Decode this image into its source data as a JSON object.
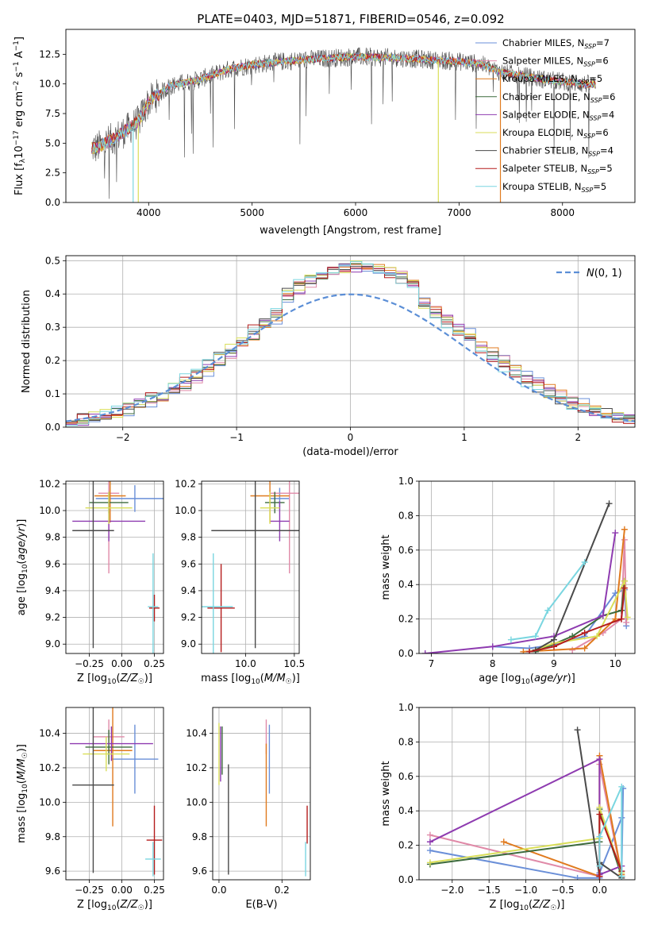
{
  "title": "PLATE=0403, MJD=51871, FIBERID=0546, z=0.092",
  "colors": {
    "chabrier_miles": "#6a8fd8",
    "salpeter_miles": "#e08aa8",
    "kroupa_miles": "#e07a1e",
    "chabrier_elodie": "#3d6b3d",
    "salpeter_elodie": "#8e3bb0",
    "kroupa_elodie": "#d9de58",
    "chabrier_stelib": "#4a4a4a",
    "salpeter_stelib": "#b51c1c",
    "kroupa_stelib": "#7ad6e0",
    "normal_curve": "#5b8ed6",
    "grid": "#b0b0b0"
  },
  "chart_data": [
    {
      "id": "spectrum",
      "type": "line",
      "title": "PLATE=0403, MJD=51871, FIBERID=0546, z=0.092",
      "xlabel": "wavelength [Angstrom, rest frame]",
      "ylabel": "Flux [f_λ 10^-17 erg cm^-2 s^-1 A^-1]",
      "xlim": [
        3200,
        8700
      ],
      "ylim": [
        0,
        14.6
      ],
      "xticks": [
        4000,
        5000,
        6000,
        7000,
        8000
      ],
      "yticks": [
        0.0,
        2.5,
        5.0,
        7.5,
        10.0,
        12.5
      ],
      "grid": false,
      "legend_position": "right",
      "legend": [
        {
          "label": "Chabrier MILES, N_SSP=7",
          "color": "#6a8fd8"
        },
        {
          "label": "Salpeter MILES, N_SSP=6",
          "color": "#e08aa8"
        },
        {
          "label": "Kroupa MILES, N_SSP=5",
          "color": "#e07a1e"
        },
        {
          "label": "Chabrier ELODIE, N_SSP=6",
          "color": "#3d6b3d"
        },
        {
          "label": "Salpeter ELODIE, N_SSP=4",
          "color": "#8e3bb0"
        },
        {
          "label": "Kroupa ELODIE, N_SSP=6",
          "color": "#d9de58"
        },
        {
          "label": "Chabrier STELIB, N_SSP=4",
          "color": "#4a4a4a"
        },
        {
          "label": "Salpeter STELIB, N_SSP=5",
          "color": "#b51c1c"
        },
        {
          "label": "Kroupa STELIB, N_SSP=5",
          "color": "#7ad6e0"
        }
      ],
      "continuum": {
        "wavelength": [
          3500,
          3700,
          3900,
          4000,
          4200,
          4500,
          4800,
          5000,
          5300,
          5600,
          6000,
          6400,
          6800,
          7000,
          7200,
          7400,
          7800,
          8200,
          8700
        ],
        "flux": [
          4.6,
          5.6,
          6.8,
          8.5,
          9.8,
          10.4,
          11.3,
          11.6,
          11.9,
          12.1,
          12.3,
          12.2,
          12.0,
          11.9,
          11.7,
          11.0,
          10.4,
          10.0,
          9.8
        ]
      },
      "spike_wavelengths": [
        3850,
        3900,
        6800,
        7400
      ]
    },
    {
      "id": "residuals",
      "type": "line",
      "xlabel": "(data-model)/error",
      "ylabel": "Normed distribution",
      "xlim": [
        -2.5,
        2.5
      ],
      "ylim": [
        0,
        0.515
      ],
      "xticks": [
        -2,
        -1,
        0,
        1,
        2
      ],
      "yticks": [
        0.0,
        0.1,
        0.2,
        0.3,
        0.4,
        0.5
      ],
      "grid": true,
      "legend_position": "top-right",
      "legend": [
        {
          "label": "N(0,1)",
          "color": "#5b8ed6",
          "style": "dashed"
        }
      ],
      "bin_width": 0.1
    },
    {
      "id": "age-vs-Z",
      "type": "scatter",
      "xlabel": "Z [log10(Z/Z☉)]",
      "ylabel": "age [log10(age/yr)]",
      "xlim": [
        -0.43,
        0.32
      ],
      "ylim": [
        8.93,
        10.22
      ],
      "xticks": [
        -0.25,
        0.0,
        0.25
      ],
      "xticklabels": [
        "−0.25",
        "0.00",
        "0.25"
      ],
      "yticks": [
        9.0,
        9.2,
        9.4,
        9.6,
        9.8,
        10.0,
        10.2
      ],
      "grid": true,
      "points": [
        {
          "x": 0.1,
          "y": 10.09,
          "xerr": 0.3,
          "yerr": 0.1,
          "color": "#6a8fd8"
        },
        {
          "x": -0.1,
          "y": 10.13,
          "xerr": 0.08,
          "yerr": 0.6,
          "color": "#e08aa8"
        },
        {
          "x": -0.09,
          "y": 10.11,
          "xerr": 0.12,
          "yerr": 0.2,
          "color": "#e07a1e"
        },
        {
          "x": -0.1,
          "y": 10.06,
          "xerr": 0.15,
          "yerr": 0.08,
          "color": "#3d6b3d"
        },
        {
          "x": -0.1,
          "y": 9.92,
          "xerr": 0.28,
          "yerr": 0.15,
          "color": "#8e3bb0"
        },
        {
          "x": -0.1,
          "y": 10.02,
          "xerr": 0.18,
          "yerr": 0.12,
          "color": "#d9de58"
        },
        {
          "x": -0.22,
          "y": 9.85,
          "xerr": 0.16,
          "yerr": 0.88,
          "color": "#4a4a4a"
        },
        {
          "x": 0.25,
          "y": 9.27,
          "xerr": 0.04,
          "yerr": 0.1,
          "color": "#b51c1c"
        },
        {
          "x": 0.24,
          "y": 9.28,
          "xerr": 0.04,
          "yerr": 0.4,
          "color": "#7ad6e0"
        }
      ]
    },
    {
      "id": "age-vs-mass",
      "type": "scatter",
      "xlabel": "mass [log10(M/M☉)]",
      "ylabel": "",
      "xlim": [
        9.55,
        10.55
      ],
      "ylim": [
        8.93,
        10.22
      ],
      "xticks": [
        10.0,
        10.5
      ],
      "yticks": [
        9.0,
        9.2,
        9.4,
        9.6,
        9.8,
        10.0,
        10.2
      ],
      "grid": true,
      "points": [
        {
          "x": 10.35,
          "y": 10.09,
          "xerr": 0.1,
          "yerr": 0.08,
          "color": "#6a8fd8"
        },
        {
          "x": 10.45,
          "y": 10.13,
          "xerr": 0.2,
          "yerr": 0.6,
          "color": "#e08aa8"
        },
        {
          "x": 10.25,
          "y": 10.11,
          "xerr": 0.2,
          "yerr": 0.2,
          "color": "#e07a1e"
        },
        {
          "x": 10.3,
          "y": 10.06,
          "xerr": 0.1,
          "yerr": 0.08,
          "color": "#3d6b3d"
        },
        {
          "x": 10.35,
          "y": 9.92,
          "xerr": 0.1,
          "yerr": 0.15,
          "color": "#8e3bb0"
        },
        {
          "x": 10.25,
          "y": 10.02,
          "xerr": 0.1,
          "yerr": 0.12,
          "color": "#d9de58"
        },
        {
          "x": 10.1,
          "y": 9.85,
          "xerr": 0.45,
          "yerr": 0.88,
          "color": "#4a4a4a"
        },
        {
          "x": 9.75,
          "y": 9.27,
          "xerr": 0.14,
          "yerr": 0.33,
          "color": "#b51c1c"
        },
        {
          "x": 9.67,
          "y": 9.28,
          "xerr": 0.2,
          "yerr": 0.4,
          "color": "#7ad6e0"
        }
      ]
    },
    {
      "id": "weight-vs-age",
      "type": "line",
      "xlabel": "age [log10(age/yr)]",
      "ylabel": "mass weight",
      "xlim": [
        6.8,
        10.32
      ],
      "ylim": [
        0,
        1.0
      ],
      "xticks": [
        7,
        8,
        9,
        10
      ],
      "yticks": [
        0.0,
        0.2,
        0.4,
        0.6,
        0.8,
        1.0
      ],
      "grid": true,
      "series": [
        {
          "color": "#6a8fd8",
          "x": [
            8.0,
            8.6,
            9.0,
            9.5,
            10.0,
            10.15,
            10.18
          ],
          "y": [
            0.04,
            0.03,
            0.05,
            0.1,
            0.35,
            0.37,
            0.16
          ]
        },
        {
          "color": "#e08aa8",
          "x": [
            9.3,
            9.8,
            10.1,
            10.15,
            10.18
          ],
          "y": [
            0.02,
            0.12,
            0.2,
            0.66,
            0.18
          ]
        },
        {
          "color": "#e07a1e",
          "x": [
            8.5,
            9.5,
            10.0,
            10.15
          ],
          "y": [
            0.01,
            0.03,
            0.2,
            0.72
          ]
        },
        {
          "color": "#3d6b3d",
          "x": [
            8.7,
            9.3,
            9.8,
            10.1,
            10.15
          ],
          "y": [
            0.01,
            0.1,
            0.22,
            0.25,
            0.42
          ]
        },
        {
          "color": "#8e3bb0",
          "x": [
            6.9,
            8.0,
            9.0,
            9.8,
            10.0
          ],
          "y": [
            0.0,
            0.04,
            0.1,
            0.22,
            0.7
          ]
        },
        {
          "color": "#d9de58",
          "x": [
            8.6,
            9.0,
            9.7,
            10.15,
            10.2
          ],
          "y": [
            0.01,
            0.06,
            0.1,
            0.42,
            0.21
          ]
        },
        {
          "color": "#4a4a4a",
          "x": [
            8.7,
            9.0,
            9.9
          ],
          "y": [
            0.02,
            0.08,
            0.87
          ]
        },
        {
          "color": "#b51c1c",
          "x": [
            8.6,
            9.0,
            9.5,
            10.1,
            10.15
          ],
          "y": [
            0.01,
            0.04,
            0.12,
            0.2,
            0.38
          ]
        },
        {
          "color": "#7ad6e0",
          "x": [
            8.3,
            8.7,
            8.9,
            9.5
          ],
          "y": [
            0.08,
            0.1,
            0.25,
            0.53
          ]
        }
      ]
    },
    {
      "id": "mass-vs-Z",
      "type": "scatter",
      "xlabel": "Z [log10(Z/Z☉)]",
      "ylabel": "mass [log10(M/M☉)]",
      "xlim": [
        -0.43,
        0.32
      ],
      "ylim": [
        9.55,
        10.55
      ],
      "xticks": [
        -0.25,
        0.0,
        0.25
      ],
      "xticklabels": [
        "−0.25",
        "0.00",
        "0.25"
      ],
      "yticks": [
        9.6,
        9.8,
        10.0,
        10.2,
        10.4
      ],
      "grid": true,
      "points": [
        {
          "x": 0.1,
          "y": 10.25,
          "xerr": 0.18,
          "yerr": 0.2,
          "color": "#6a8fd8"
        },
        {
          "x": -0.1,
          "y": 10.38,
          "xerr": 0.12,
          "yerr": 0.1,
          "color": "#e08aa8"
        },
        {
          "x": -0.07,
          "y": 10.3,
          "xerr": 0.15,
          "yerr": 0.44,
          "color": "#e07a1e"
        },
        {
          "x": -0.1,
          "y": 10.32,
          "xerr": 0.18,
          "yerr": 0.1,
          "color": "#3d6b3d"
        },
        {
          "x": -0.08,
          "y": 10.34,
          "xerr": 0.32,
          "yerr": 0.1,
          "color": "#8e3bb0"
        },
        {
          "x": -0.12,
          "y": 10.28,
          "xerr": 0.18,
          "yerr": 0.1,
          "color": "#d9de58"
        },
        {
          "x": -0.22,
          "y": 10.1,
          "xerr": 0.16,
          "yerr": 0.51,
          "color": "#4a4a4a"
        },
        {
          "x": 0.25,
          "y": 9.78,
          "xerr": 0.06,
          "yerr": 0.2,
          "color": "#b51c1c"
        },
        {
          "x": 0.24,
          "y": 9.67,
          "xerr": 0.06,
          "yerr": 0.1,
          "color": "#7ad6e0"
        }
      ]
    },
    {
      "id": "mass-vs-EBV",
      "type": "scatter",
      "xlabel": "E(B-V)",
      "ylabel": "",
      "xlim": [
        -0.02,
        0.29
      ],
      "ylim": [
        9.55,
        10.55
      ],
      "xticks": [
        0.0,
        0.2
      ],
      "yticks": [
        9.6,
        9.8,
        10.0,
        10.2,
        10.4
      ],
      "grid": true,
      "points": [
        {
          "x": 0.16,
          "y": 10.25,
          "xerr": 0.0,
          "yerr": 0.2,
          "color": "#6a8fd8"
        },
        {
          "x": 0.15,
          "y": 10.38,
          "xerr": 0.0,
          "yerr": 0.1,
          "color": "#e08aa8"
        },
        {
          "x": 0.15,
          "y": 10.1,
          "xerr": 0.0,
          "yerr": 0.24,
          "color": "#e07a1e"
        },
        {
          "x": 0.01,
          "y": 10.3,
          "xerr": 0.0,
          "yerr": 0.14,
          "color": "#3d6b3d"
        },
        {
          "x": 0.005,
          "y": 10.28,
          "xerr": 0.0,
          "yerr": 0.16,
          "color": "#8e3bb0"
        },
        {
          "x": 0.0,
          "y": 10.28,
          "xerr": 0.0,
          "yerr": 0.18,
          "color": "#d9de58"
        },
        {
          "x": 0.03,
          "y": 9.9,
          "xerr": 0.0,
          "yerr": 0.32,
          "color": "#4a4a4a"
        },
        {
          "x": 0.28,
          "y": 9.87,
          "xerr": 0.0,
          "yerr": 0.11,
          "color": "#b51c1c"
        },
        {
          "x": 0.275,
          "y": 9.67,
          "xerr": 0.0,
          "yerr": 0.1,
          "color": "#7ad6e0"
        }
      ]
    },
    {
      "id": "weight-vs-Z",
      "type": "line",
      "xlabel": "Z [log10(Z/Z☉)]",
      "ylabel": "mass weight",
      "xlim": [
        -2.45,
        0.48
      ],
      "ylim": [
        0,
        1.0
      ],
      "xticks": [
        -2.0,
        -1.5,
        -1.0,
        -0.5,
        0.0
      ],
      "xticklabels": [
        "−2.0",
        "−1.5",
        "−1.0",
        "−0.5",
        "0.0"
      ],
      "yticks": [
        0.0,
        0.2,
        0.4,
        0.6,
        0.8,
        1.0
      ],
      "grid": true,
      "series": [
        {
          "color": "#6a8fd8",
          "x": [
            -2.3,
            -0.3,
            0.0,
            0.0,
            0.3,
            0.3,
            0.32
          ],
          "y": [
            0.17,
            0.01,
            0.01,
            0.04,
            0.36,
            0.05,
            0.53
          ]
        },
        {
          "color": "#e08aa8",
          "x": [
            -2.3,
            0.0,
            0.0,
            0.3
          ],
          "y": [
            0.26,
            0.02,
            0.67,
            0.02
          ]
        },
        {
          "color": "#e07a1e",
          "x": [
            -1.3,
            0.0,
            0.0,
            0.3
          ],
          "y": [
            0.22,
            0.02,
            0.72,
            0.03
          ]
        },
        {
          "color": "#3d6b3d",
          "x": [
            -2.3,
            0.0,
            0.0,
            0.3
          ],
          "y": [
            0.09,
            0.22,
            0.41,
            0.02
          ]
        },
        {
          "color": "#8e3bb0",
          "x": [
            -2.3,
            0.0,
            0.0,
            0.3
          ],
          "y": [
            0.22,
            0.7,
            0.03,
            0.08
          ]
        },
        {
          "color": "#d9de58",
          "x": [
            -2.3,
            0.0,
            0.0,
            0.3
          ],
          "y": [
            0.1,
            0.24,
            0.42,
            0.04
          ]
        },
        {
          "color": "#4a4a4a",
          "x": [
            -0.3,
            0.0,
            0.0,
            0.3
          ],
          "y": [
            0.87,
            0.02,
            0.1,
            0.01
          ]
        },
        {
          "color": "#b51c1c",
          "x": [
            0.0,
            0.0,
            0.3
          ],
          "y": [
            0.02,
            0.38,
            0.05
          ]
        },
        {
          "color": "#7ad6e0",
          "x": [
            0.0,
            0.0,
            0.3,
            0.3
          ],
          "y": [
            0.08,
            0.25,
            0.54,
            0.02
          ]
        }
      ]
    }
  ]
}
